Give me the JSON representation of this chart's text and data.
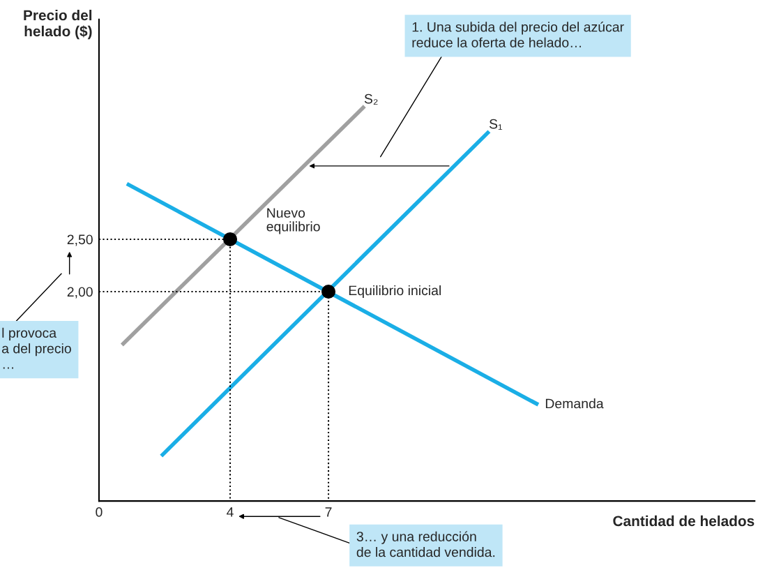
{
  "chart_data": {
    "type": "line",
    "xlabel": "Cantidad de helados",
    "ylabel": "Precio del\nhelado ($)",
    "xlim": [
      0,
      20
    ],
    "ylim": [
      0,
      4.6
    ],
    "xticks": [
      0,
      4,
      7
    ],
    "yticks": [
      {
        "value": 2,
        "label": "2,00"
      },
      {
        "value": 2.5,
        "label": "2,50"
      }
    ],
    "grid": false,
    "legend": false,
    "series": [
      {
        "name": "S₂",
        "color": "#a0a0a0",
        "x": [
          0.7,
          8.1
        ],
        "values": [
          1.49,
          3.77
        ]
      },
      {
        "name": "S₁",
        "color": "#1aaee6",
        "x": [
          1.9,
          11.9
        ],
        "values": [
          0.43,
          3.53
        ]
      },
      {
        "name": "Demanda",
        "color": "#1aaee6",
        "x": [
          0.85,
          13.4
        ],
        "values": [
          3.03,
          0.92
        ]
      },
      {
        "color": "#000000",
        "line_style": "dotted",
        "x": [
          0,
          4,
          4
        ],
        "values": [
          2.5,
          2.5,
          0
        ]
      },
      {
        "color": "#000000",
        "line_style": "dotted",
        "x": [
          0,
          7,
          7
        ],
        "values": [
          2,
          2,
          0
        ]
      },
      {
        "type": "scatter",
        "marker": "circle",
        "color": "#000000",
        "x": [
          4,
          7
        ],
        "values": [
          2.5,
          2
        ]
      }
    ],
    "annotations": [
      "1. Una subida del precio del azúcar\nreduce la oferta de helado…",
      "l provoca\na del precio\n…",
      "3… y una reducción\nde la cantidad vendida.",
      {
        "text": "Nuevo\nequilibrio",
        "x": 4,
        "y": 2.5
      },
      {
        "text": "Equilibrio inicial",
        "x": 7,
        "y": 2
      }
    ]
  }
}
